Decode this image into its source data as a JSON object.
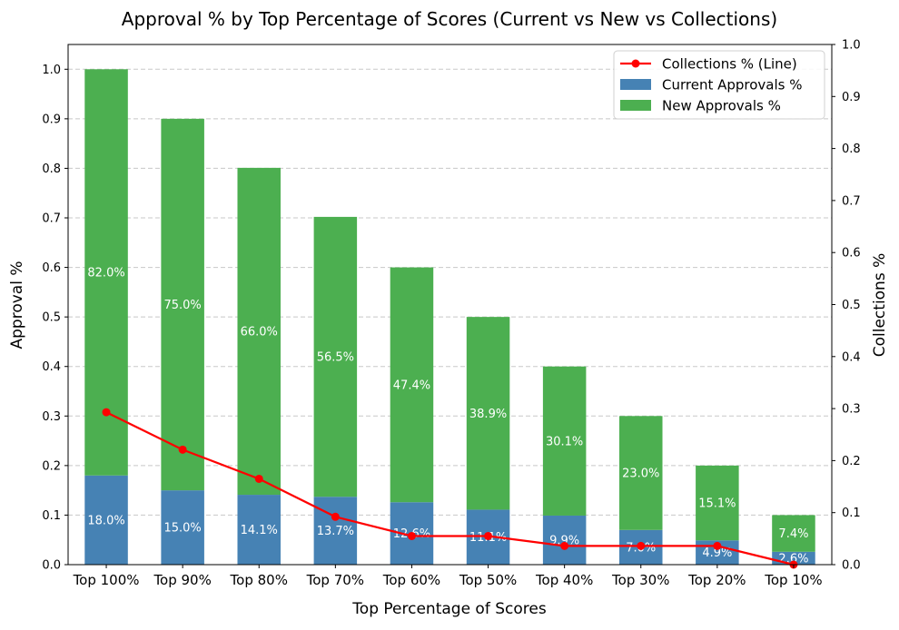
{
  "chart_data": {
    "type": "bar",
    "title": "Approval % by Top Percentage of Scores (Current vs New vs Collections)",
    "xlabel": "Top Percentage of Scores",
    "ylabel": "Approval %",
    "ylabel_right": "Collections %",
    "ylim": [
      0,
      1.05
    ],
    "ylim_right": [
      0,
      1.0
    ],
    "yticks": [
      "0.0",
      "0.1",
      "0.2",
      "0.3",
      "0.4",
      "0.5",
      "0.6",
      "0.7",
      "0.8",
      "0.9",
      "1.0"
    ],
    "yticks_right": [
      "0.0",
      "0.1",
      "0.2",
      "0.3",
      "0.4",
      "0.5",
      "0.6",
      "0.7",
      "0.8",
      "0.9",
      "1.0"
    ],
    "grid": true,
    "legend_position": "top-right",
    "categories": [
      "Top 100%",
      "Top 90%",
      "Top 80%",
      "Top 70%",
      "Top 60%",
      "Top 50%",
      "Top 40%",
      "Top 30%",
      "Top 20%",
      "Top 10%"
    ],
    "series": [
      {
        "name": "Current Approvals %",
        "kind": "stacked-bar",
        "color": "#4682b4",
        "values": [
          0.18,
          0.15,
          0.141,
          0.137,
          0.126,
          0.111,
          0.099,
          0.07,
          0.049,
          0.026
        ],
        "labels": [
          "18.0%",
          "15.0%",
          "14.1%",
          "13.7%",
          "12.6%",
          "11.1%",
          "9.9%",
          "7.0%",
          "4.9%",
          "2.6%"
        ]
      },
      {
        "name": "New Approvals %",
        "kind": "stacked-bar",
        "color": "#4caf50",
        "values": [
          0.82,
          0.75,
          0.66,
          0.565,
          0.474,
          0.389,
          0.301,
          0.23,
          0.151,
          0.074
        ],
        "labels": [
          "82.0%",
          "75.0%",
          "66.0%",
          "56.5%",
          "47.4%",
          "38.9%",
          "30.1%",
          "23.0%",
          "15.1%",
          "7.4%"
        ]
      },
      {
        "name": "Collections % (Line)",
        "kind": "line",
        "axis": "right",
        "color": "#ff0000",
        "values": [
          0.293,
          0.221,
          0.165,
          0.092,
          0.055,
          0.055,
          0.036,
          0.036,
          0.036,
          0.0
        ]
      }
    ]
  }
}
